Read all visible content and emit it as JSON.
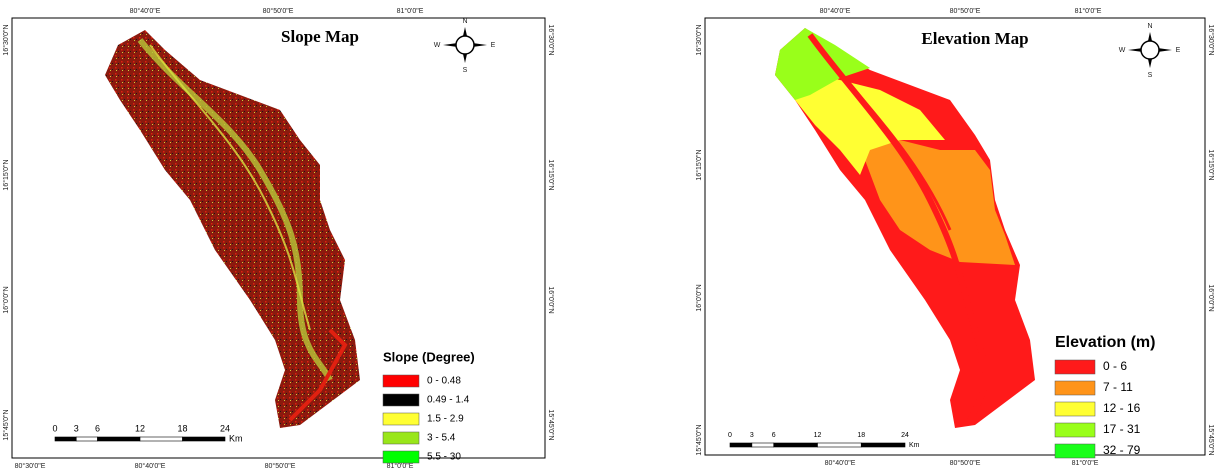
{
  "maps": [
    {
      "title": "Slope Map",
      "top_labels": [
        "80°40'0\"E",
        "80°50'0\"E",
        "81°0'0\"E"
      ],
      "bottom_labels": [
        "80°30'0\"E",
        "80°40'0\"E",
        "80°50'0\"E",
        "81°0'0\"E"
      ],
      "left_labels": [
        "16°30'0\"N",
        "16°15'0\"N",
        "16°0'0\"N",
        "15°45'0\"N"
      ],
      "right_labels": [
        "16°30'0\"N",
        "16°15'0\"N",
        "16°0'0\"N",
        "15°45'0\"N"
      ],
      "compass": {
        "n": "N",
        "s": "S",
        "e": "E",
        "w": "W"
      },
      "scale": {
        "labels": [
          "0",
          "3",
          "6",
          "12",
          "18",
          "24"
        ],
        "unit": "Km"
      },
      "legend": {
        "title": "Slope (Degree)",
        "items": [
          {
            "label": "0 - 0.48",
            "color": "#ff0000"
          },
          {
            "label": "0.49 - 1.4",
            "color": "#000000"
          },
          {
            "label": "1.5 - 2.9",
            "color": "#ffff33"
          },
          {
            "label": "3 - 5.4",
            "color": "#99e61a"
          },
          {
            "label": "5.5 - 30",
            "color": "#00ff00"
          }
        ]
      }
    },
    {
      "title": "Elevation Map",
      "top_labels": [
        "80°40'0\"E",
        "80°50'0\"E",
        "81°0'0\"E"
      ],
      "bottom_labels": [
        "80°40'0\"E",
        "80°50'0\"E",
        "81°0'0\"E"
      ],
      "left_labels": [
        "16°30'0\"N",
        "16°15'0\"N",
        "16°0'0\"N",
        "15°45'0\"N"
      ],
      "right_labels": [
        "16°30'0\"N",
        "16°15'0\"N",
        "16°0'0\"N",
        "15°45'0\"N"
      ],
      "compass": {
        "n": "N",
        "s": "S",
        "e": "E",
        "w": "W"
      },
      "scale": {
        "labels": [
          "0",
          "3",
          "6",
          "12",
          "18",
          "24"
        ],
        "unit": "Km"
      },
      "legend": {
        "title": "Elevation (m)",
        "items": [
          {
            "label": "0 - 6",
            "color": "#ff1a1a"
          },
          {
            "label": "7 - 11",
            "color": "#ff9419"
          },
          {
            "label": "12 - 16",
            "color": "#ffff33"
          },
          {
            "label": "17 - 31",
            "color": "#99ff1a"
          },
          {
            "label": "32 - 79",
            "color": "#1aff1a"
          }
        ]
      }
    }
  ]
}
